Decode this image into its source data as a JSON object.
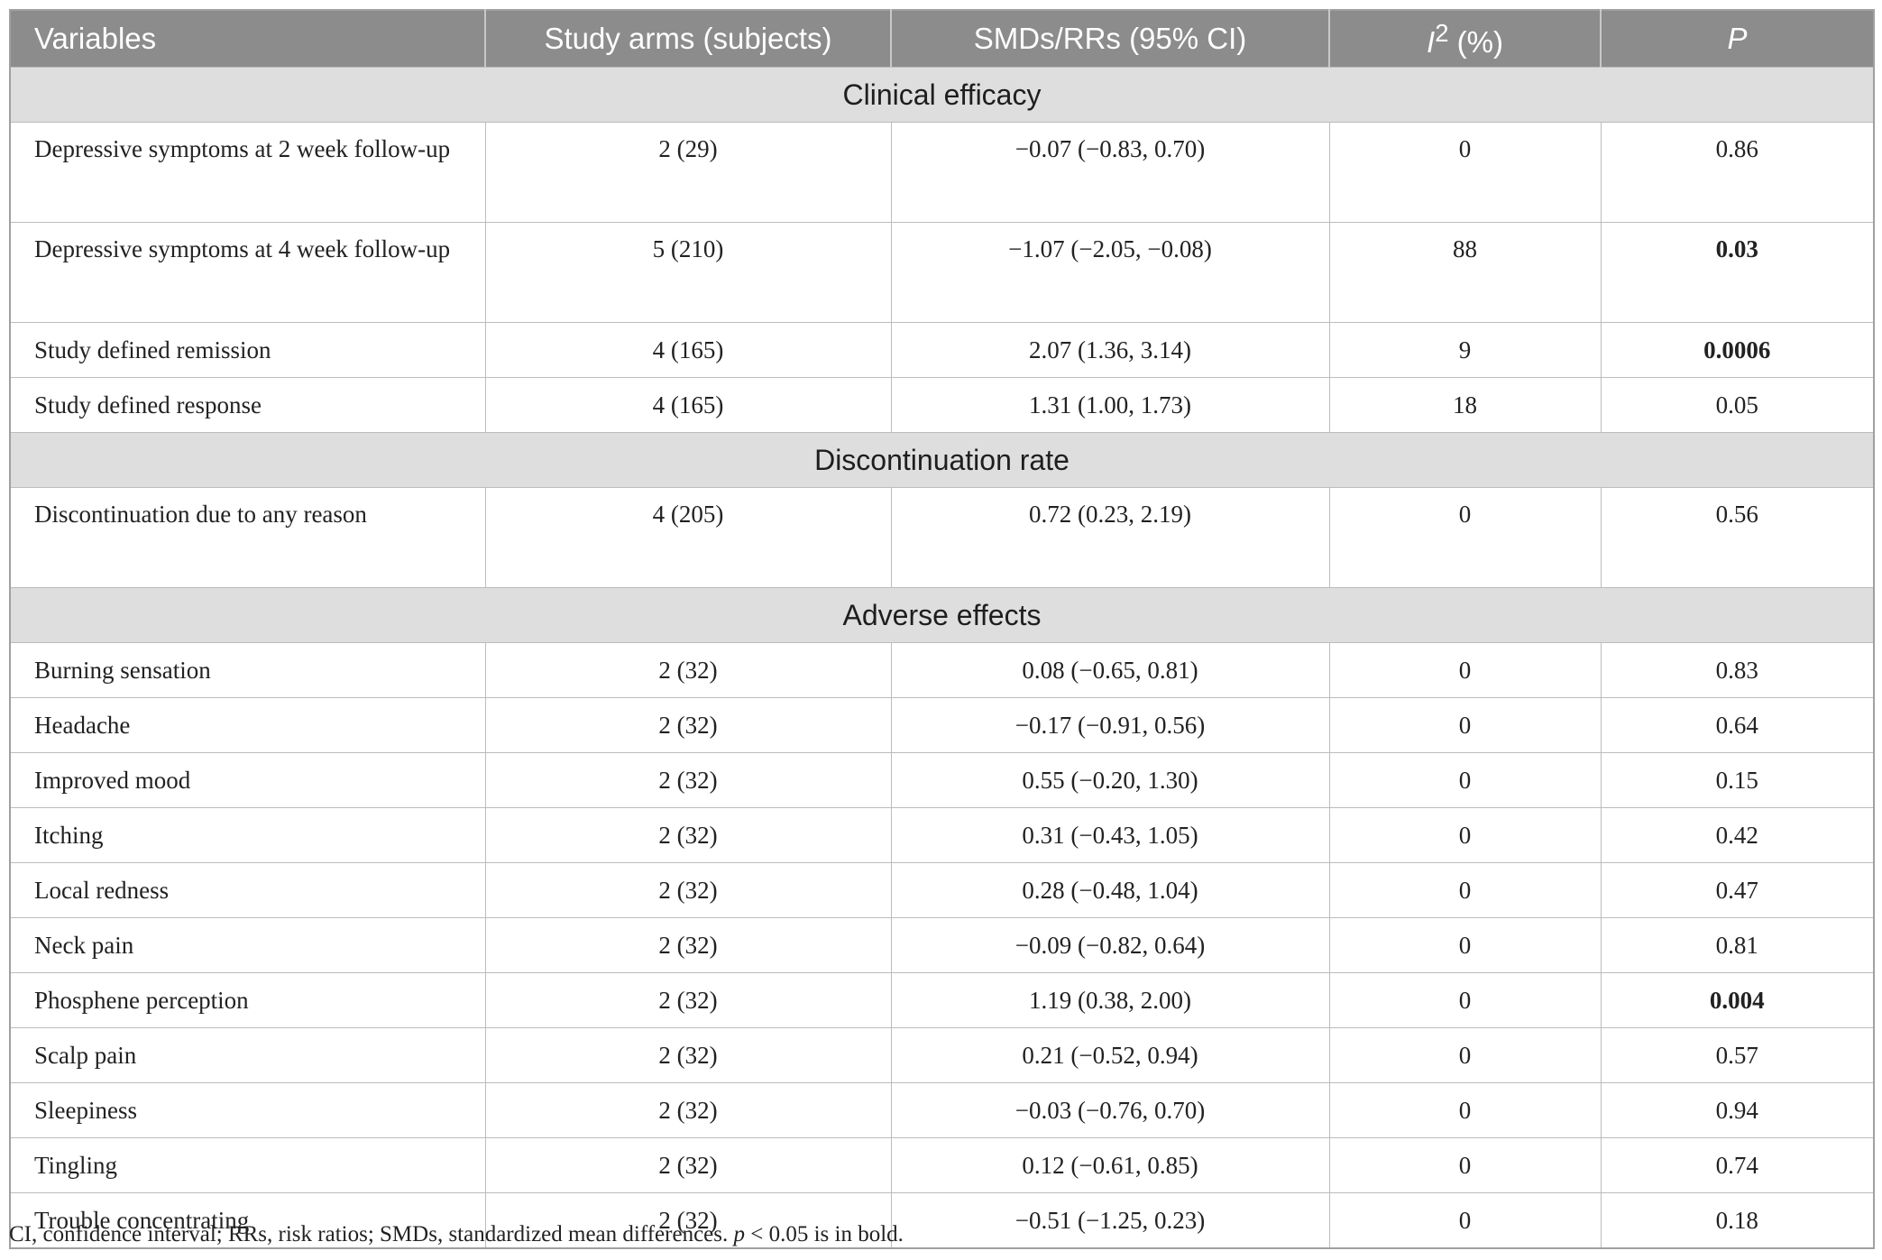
{
  "table": {
    "headers": {
      "variables": "Variables",
      "study_arms": "Study arms (subjects)",
      "smds": "SMDs/RRs (95% CI)",
      "i2_letter": "I",
      "i2_sup": "2",
      "i2_unit": " (%)",
      "p": "P"
    },
    "sections": [
      {
        "title": "Clinical efficacy",
        "rows": [
          {
            "variable": "Depressive symptoms at 2 week follow-up",
            "arms": "2 (29)",
            "smd": "−0.07 (−0.83, 0.70)",
            "i2": "0",
            "p": "0.86",
            "bold": false
          },
          {
            "variable": "Depressive symptoms at 4 week follow-up",
            "arms": "5 (210)",
            "smd": "−1.07 (−2.05, −0.08)",
            "i2": "88",
            "p": "0.03",
            "bold": true
          },
          {
            "variable": "Study defined remission",
            "arms": "4 (165)",
            "smd": "2.07 (1.36, 3.14)",
            "i2": "9",
            "p": "0.0006",
            "bold": true
          },
          {
            "variable": "Study defined response",
            "arms": "4 (165)",
            "smd": "1.31 (1.00, 1.73)",
            "i2": "18",
            "p": "0.05",
            "bold": false
          }
        ]
      },
      {
        "title": "Discontinuation rate",
        "rows": [
          {
            "variable": "Discontinuation due to any reason",
            "arms": "4 (205)",
            "smd": "0.72 (0.23, 2.19)",
            "i2": "0",
            "p": "0.56",
            "bold": false
          }
        ]
      },
      {
        "title": "Adverse effects",
        "rows": [
          {
            "variable": "Burning sensation",
            "arms": "2 (32)",
            "smd": "0.08 (−0.65, 0.81)",
            "i2": "0",
            "p": "0.83",
            "bold": false
          },
          {
            "variable": "Headache",
            "arms": "2 (32)",
            "smd": "−0.17 (−0.91, 0.56)",
            "i2": "0",
            "p": "0.64",
            "bold": false
          },
          {
            "variable": "Improved mood",
            "arms": "2 (32)",
            "smd": "0.55 (−0.20, 1.30)",
            "i2": "0",
            "p": "0.15",
            "bold": false
          },
          {
            "variable": "Itching",
            "arms": "2 (32)",
            "smd": "0.31 (−0.43, 1.05)",
            "i2": "0",
            "p": "0.42",
            "bold": false
          },
          {
            "variable": "Local redness",
            "arms": "2 (32)",
            "smd": "0.28 (−0.48, 1.04)",
            "i2": "0",
            "p": "0.47",
            "bold": false
          },
          {
            "variable": "Neck pain",
            "arms": "2 (32)",
            "smd": "−0.09 (−0.82, 0.64)",
            "i2": "0",
            "p": "0.81",
            "bold": false
          },
          {
            "variable": "Phosphene perception",
            "arms": "2 (32)",
            "smd": "1.19 (0.38, 2.00)",
            "i2": "0",
            "p": "0.004",
            "bold": true
          },
          {
            "variable": "Scalp pain",
            "arms": "2 (32)",
            "smd": "0.21 (−0.52, 0.94)",
            "i2": "0",
            "p": "0.57",
            "bold": false
          },
          {
            "variable": "Sleepiness",
            "arms": "2 (32)",
            "smd": "−0.03 (−0.76, 0.70)",
            "i2": "0",
            "p": "0.94",
            "bold": false
          },
          {
            "variable": "Tingling",
            "arms": "2 (32)",
            "smd": "0.12 (−0.61, 0.85)",
            "i2": "0",
            "p": "0.74",
            "bold": false
          },
          {
            "variable": "Trouble concentrating",
            "arms": "2 (32)",
            "smd": "−0.51 (−1.25, 0.23)",
            "i2": "0",
            "p": "0.18",
            "bold": false
          }
        ]
      }
    ]
  },
  "footnote": {
    "before_p": "CI, confidence interval; RRs, risk ratios; SMDs, standardized mean differences. ",
    "p_symbol": "p",
    "after_p": " < 0.05 is in bold."
  }
}
